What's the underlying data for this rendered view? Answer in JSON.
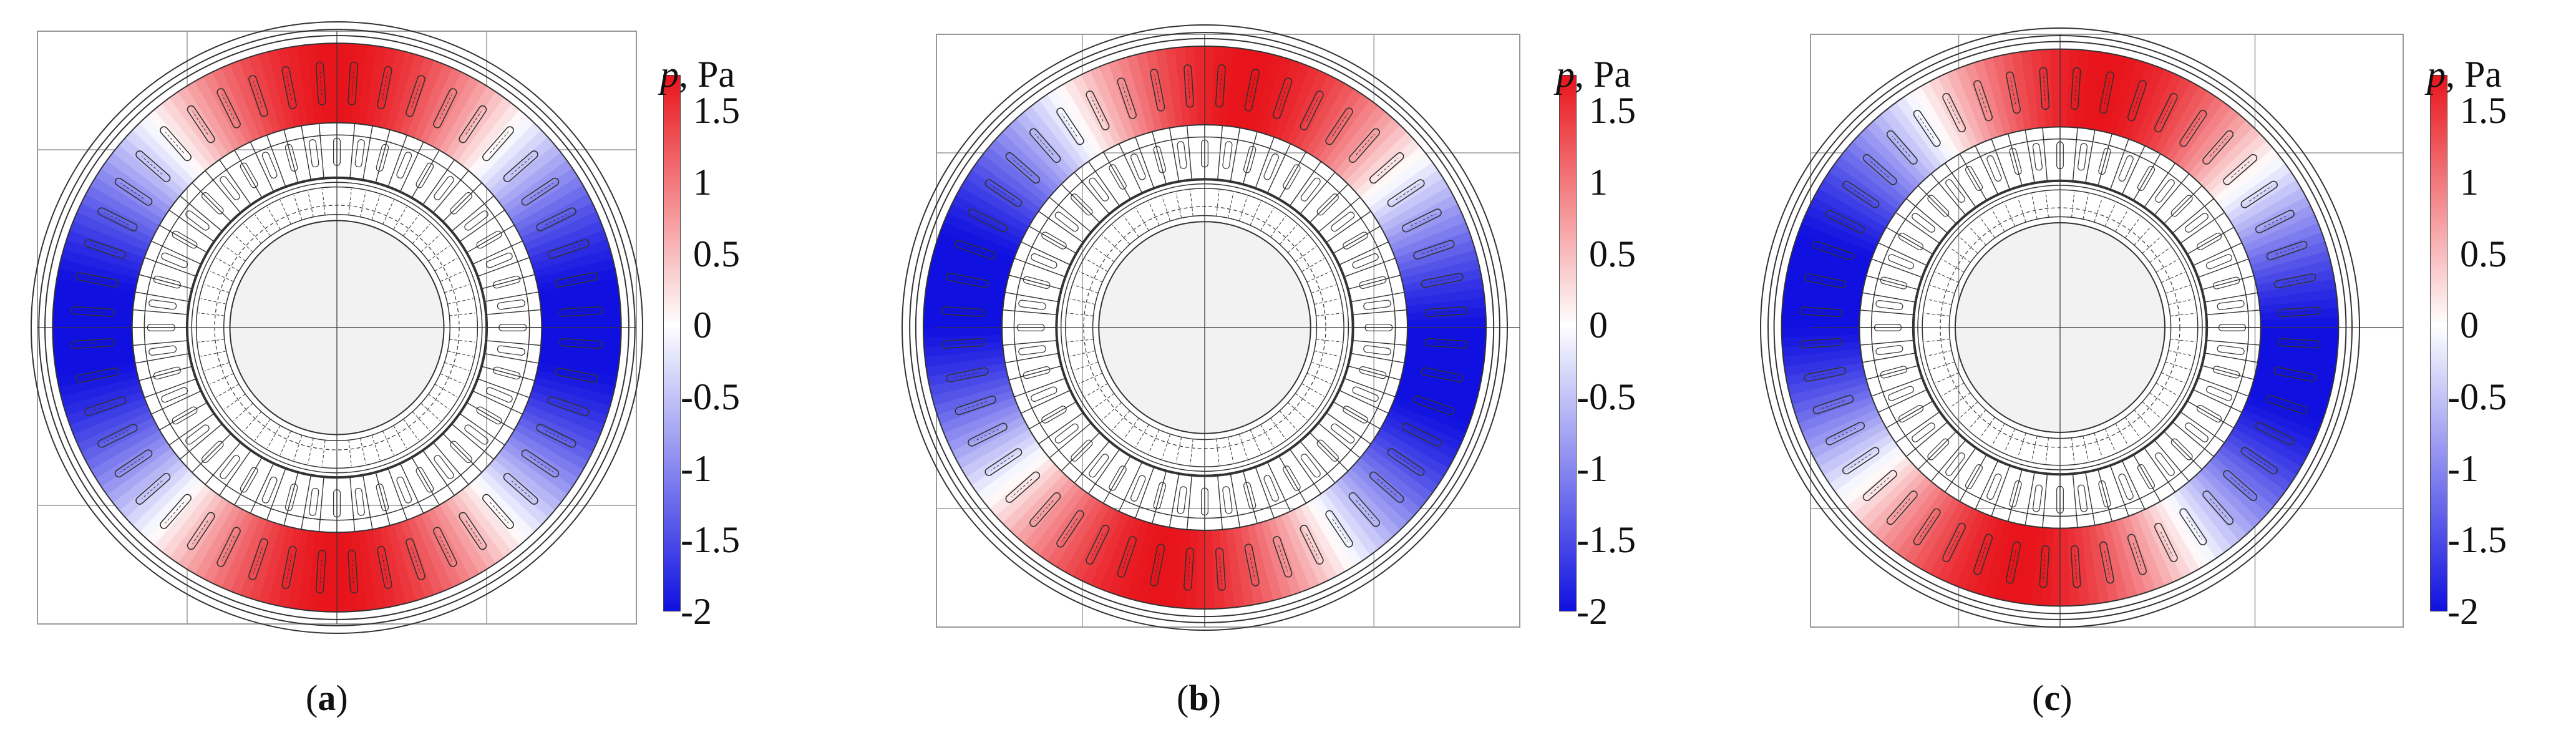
{
  "colorbar": {
    "title_symbol": "p",
    "title_unit": ", Pa",
    "ticks": [
      "1.5",
      "1",
      "0.5",
      "0",
      "-0.5",
      "-1",
      "-1.5",
      "-2"
    ],
    "tick_values": [
      1.5,
      1,
      0.5,
      0,
      -0.5,
      -1,
      -1.5,
      -2
    ],
    "range": [
      -2,
      1.75
    ],
    "color_high": "#e8141b",
    "color_zero": "#ffffff",
    "color_low": "#1010e0"
  },
  "panels": [
    {
      "label": "a",
      "caption_open": "(",
      "caption_close": ")",
      "rotation_deg": 0
    },
    {
      "label": "b",
      "caption_open": "(",
      "caption_close": ")",
      "rotation_deg": 10
    },
    {
      "label": "c",
      "caption_open": "(",
      "caption_close": ")",
      "rotation_deg": 10
    }
  ],
  "colors": {
    "stator_fill": "#f2f2f2",
    "line": "#333333",
    "frame": "#9a9a9a"
  }
}
